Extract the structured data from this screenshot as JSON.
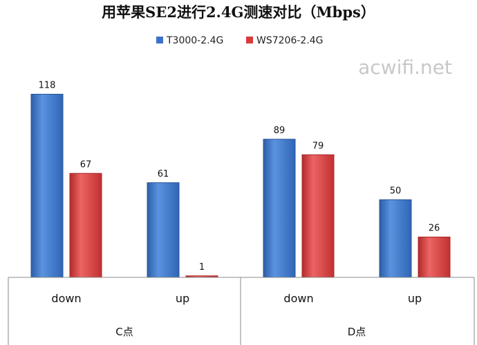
{
  "chart_data": {
    "type": "bar",
    "title": "用苹果SE2进行2.4G测速对比（Mbps）",
    "watermark": "acwifi.net",
    "groups": [
      {
        "label": "C点",
        "categories": [
          "down",
          "up"
        ]
      },
      {
        "label": "D点",
        "categories": [
          "down",
          "up"
        ]
      }
    ],
    "categories": [
      "down",
      "up",
      "down",
      "up"
    ],
    "series": [
      {
        "name": "T3000-2.4G",
        "color": "#3a73c8",
        "values": [
          118,
          61,
          89,
          50
        ]
      },
      {
        "name": "WS7206-2.4G",
        "color": "#d83b3b",
        "values": [
          67,
          1,
          79,
          26
        ]
      }
    ],
    "ylim": [
      0,
      140
    ],
    "grid": false,
    "legend_position": "top-center",
    "xlabel": "",
    "ylabel": ""
  }
}
